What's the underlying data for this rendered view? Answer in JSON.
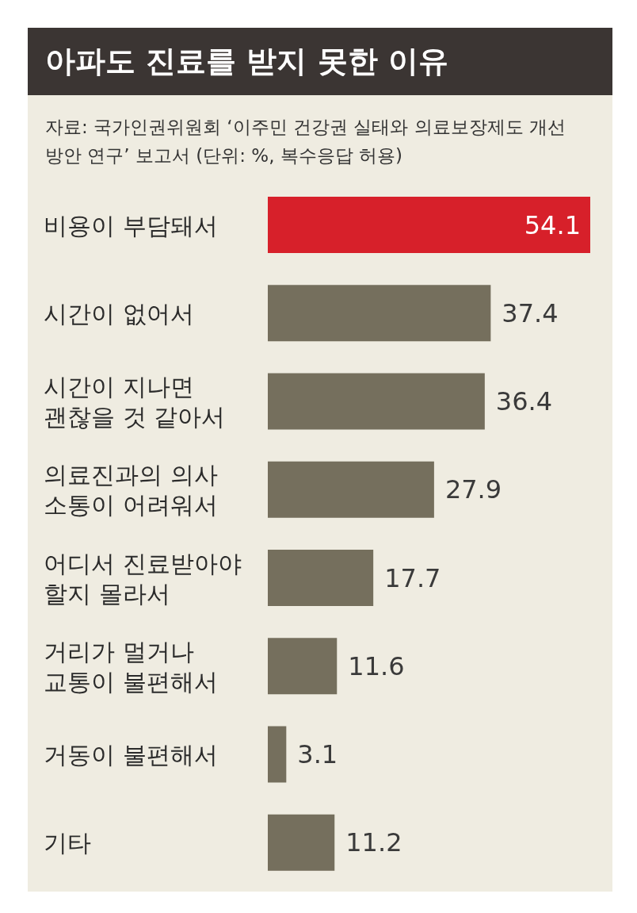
{
  "chart_data": {
    "type": "bar",
    "orientation": "horizontal",
    "title": "아파도 진료를 받지 못한 이유",
    "subtitle": "자료: 국가인권위원회 ‘이주민 건강권 실태와 의료보장제도 개선방안 연구’ 보고서 (단위: %, 복수응답 허용)",
    "categories": [
      "비용이 부담돼서",
      "시간이 없어서",
      "시간이 지나면\n괜찮을 것 같아서",
      "의료진과의 의사\n소통이 어려워서",
      "어디서 진료받아야\n할지 몰라서",
      "거리가 멀거나\n교통이 불편해서",
      "거동이 불편해서",
      "기타"
    ],
    "values": [
      54.1,
      37.4,
      36.4,
      27.9,
      17.7,
      11.6,
      3.1,
      11.2
    ],
    "colors": [
      "#d7202a",
      "#756f5d",
      "#756f5d",
      "#756f5d",
      "#756f5d",
      "#756f5d",
      "#756f5d",
      "#756f5d"
    ],
    "data_labels": true
  }
}
